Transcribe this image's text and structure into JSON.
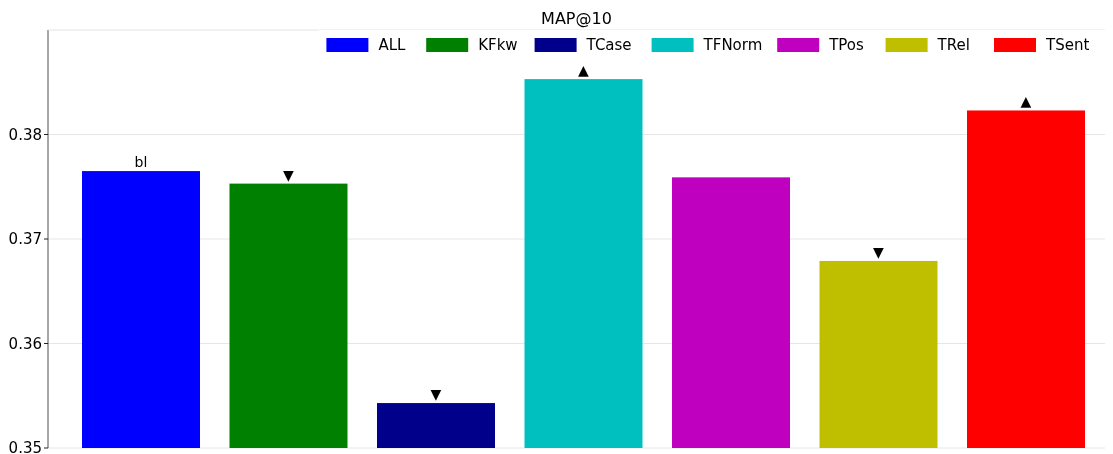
{
  "chart_data": {
    "type": "bar",
    "title": "MAP@10",
    "categories": [
      null,
      null,
      null,
      null,
      null,
      null,
      null
    ],
    "series": [
      {
        "name": "ALL",
        "color": "#0000ff",
        "values": [
          0.3765,
          null,
          null,
          null,
          null,
          null,
          null
        ],
        "value_labels": [
          "bl",
          null,
          null,
          null,
          null,
          null,
          null
        ]
      },
      {
        "name": "KFkw",
        "color": "#008000",
        "values": [
          null,
          0.3753,
          null,
          null,
          null,
          null,
          null
        ],
        "value_labels": [
          null,
          "▼",
          null,
          null,
          null,
          null,
          null
        ]
      },
      {
        "name": "TCase",
        "color": "#00008b",
        "values": [
          null,
          null,
          0.3543,
          null,
          null,
          null,
          null
        ],
        "value_labels": [
          null,
          null,
          "▼",
          null,
          null,
          null,
          null
        ]
      },
      {
        "name": "TFNorm",
        "color": "#00bfbf",
        "values": [
          null,
          null,
          null,
          0.3853,
          null,
          null,
          null
        ],
        "value_labels": [
          null,
          null,
          null,
          "▲",
          null,
          null,
          null
        ]
      },
      {
        "name": "TPos",
        "color": "#bf00bf",
        "values": [
          null,
          null,
          null,
          null,
          0.3759,
          null,
          null
        ],
        "value_labels": [
          null,
          null,
          null,
          null,
          null,
          null,
          null
        ]
      },
      {
        "name": "TRel",
        "color": "#bfbf00",
        "values": [
          null,
          null,
          null,
          null,
          null,
          0.3679,
          null
        ],
        "value_labels": [
          null,
          null,
          null,
          null,
          null,
          "▼",
          null
        ]
      },
      {
        "name": "TSent",
        "color": "#ff0000",
        "values": [
          null,
          null,
          null,
          null,
          null,
          null,
          0.3823
        ],
        "value_labels": [
          null,
          null,
          null,
          null,
          null,
          null,
          "▲"
        ]
      }
    ],
    "ylim": [
      0.35,
      0.39
    ],
    "yticks": [
      0.35,
      0.36,
      0.37,
      0.38
    ],
    "grid": "y",
    "legend": "top right"
  }
}
